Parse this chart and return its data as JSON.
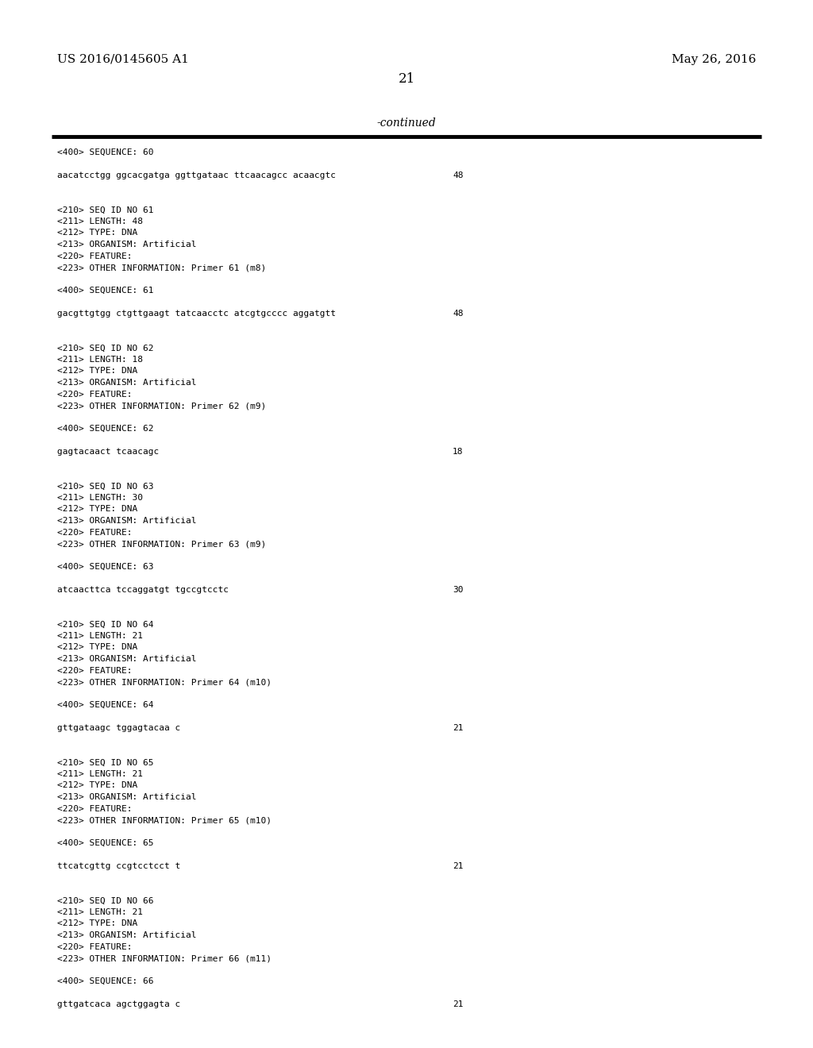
{
  "background_color": "#ffffff",
  "header_left": "US 2016/0145605 A1",
  "header_right": "May 26, 2016",
  "page_number": "21",
  "continued_label": "-continued",
  "content_lines": [
    {
      "text": "<400> SEQUENCE: 60",
      "seq_num": null
    },
    {
      "text": "",
      "seq_num": null
    },
    {
      "text": "aacatcctgg ggcacgatga ggttgataac ttcaacagcc acaacgtc",
      "seq_num": "48"
    },
    {
      "text": "",
      "seq_num": null
    },
    {
      "text": "",
      "seq_num": null
    },
    {
      "text": "<210> SEQ ID NO 61",
      "seq_num": null
    },
    {
      "text": "<211> LENGTH: 48",
      "seq_num": null
    },
    {
      "text": "<212> TYPE: DNA",
      "seq_num": null
    },
    {
      "text": "<213> ORGANISM: Artificial",
      "seq_num": null
    },
    {
      "text": "<220> FEATURE:",
      "seq_num": null
    },
    {
      "text": "<223> OTHER INFORMATION: Primer 61 (m8)",
      "seq_num": null
    },
    {
      "text": "",
      "seq_num": null
    },
    {
      "text": "<400> SEQUENCE: 61",
      "seq_num": null
    },
    {
      "text": "",
      "seq_num": null
    },
    {
      "text": "gacgttgtgg ctgttgaagt tatcaacctc atcgtgcccc aggatgtt",
      "seq_num": "48"
    },
    {
      "text": "",
      "seq_num": null
    },
    {
      "text": "",
      "seq_num": null
    },
    {
      "text": "<210> SEQ ID NO 62",
      "seq_num": null
    },
    {
      "text": "<211> LENGTH: 18",
      "seq_num": null
    },
    {
      "text": "<212> TYPE: DNA",
      "seq_num": null
    },
    {
      "text": "<213> ORGANISM: Artificial",
      "seq_num": null
    },
    {
      "text": "<220> FEATURE:",
      "seq_num": null
    },
    {
      "text": "<223> OTHER INFORMATION: Primer 62 (m9)",
      "seq_num": null
    },
    {
      "text": "",
      "seq_num": null
    },
    {
      "text": "<400> SEQUENCE: 62",
      "seq_num": null
    },
    {
      "text": "",
      "seq_num": null
    },
    {
      "text": "gagtacaact tcaacagc",
      "seq_num": "18"
    },
    {
      "text": "",
      "seq_num": null
    },
    {
      "text": "",
      "seq_num": null
    },
    {
      "text": "<210> SEQ ID NO 63",
      "seq_num": null
    },
    {
      "text": "<211> LENGTH: 30",
      "seq_num": null
    },
    {
      "text": "<212> TYPE: DNA",
      "seq_num": null
    },
    {
      "text": "<213> ORGANISM: Artificial",
      "seq_num": null
    },
    {
      "text": "<220> FEATURE:",
      "seq_num": null
    },
    {
      "text": "<223> OTHER INFORMATION: Primer 63 (m9)",
      "seq_num": null
    },
    {
      "text": "",
      "seq_num": null
    },
    {
      "text": "<400> SEQUENCE: 63",
      "seq_num": null
    },
    {
      "text": "",
      "seq_num": null
    },
    {
      "text": "atcaacttca tccaggatgt tgccgtcctc",
      "seq_num": "30"
    },
    {
      "text": "",
      "seq_num": null
    },
    {
      "text": "",
      "seq_num": null
    },
    {
      "text": "<210> SEQ ID NO 64",
      "seq_num": null
    },
    {
      "text": "<211> LENGTH: 21",
      "seq_num": null
    },
    {
      "text": "<212> TYPE: DNA",
      "seq_num": null
    },
    {
      "text": "<213> ORGANISM: Artificial",
      "seq_num": null
    },
    {
      "text": "<220> FEATURE:",
      "seq_num": null
    },
    {
      "text": "<223> OTHER INFORMATION: Primer 64 (m10)",
      "seq_num": null
    },
    {
      "text": "",
      "seq_num": null
    },
    {
      "text": "<400> SEQUENCE: 64",
      "seq_num": null
    },
    {
      "text": "",
      "seq_num": null
    },
    {
      "text": "gttgataagc tggagtacaa c",
      "seq_num": "21"
    },
    {
      "text": "",
      "seq_num": null
    },
    {
      "text": "",
      "seq_num": null
    },
    {
      "text": "<210> SEQ ID NO 65",
      "seq_num": null
    },
    {
      "text": "<211> LENGTH: 21",
      "seq_num": null
    },
    {
      "text": "<212> TYPE: DNA",
      "seq_num": null
    },
    {
      "text": "<213> ORGANISM: Artificial",
      "seq_num": null
    },
    {
      "text": "<220> FEATURE:",
      "seq_num": null
    },
    {
      "text": "<223> OTHER INFORMATION: Primer 65 (m10)",
      "seq_num": null
    },
    {
      "text": "",
      "seq_num": null
    },
    {
      "text": "<400> SEQUENCE: 65",
      "seq_num": null
    },
    {
      "text": "",
      "seq_num": null
    },
    {
      "text": "ttcatcgttg ccgtcctcct t",
      "seq_num": "21"
    },
    {
      "text": "",
      "seq_num": null
    },
    {
      "text": "",
      "seq_num": null
    },
    {
      "text": "<210> SEQ ID NO 66",
      "seq_num": null
    },
    {
      "text": "<211> LENGTH: 21",
      "seq_num": null
    },
    {
      "text": "<212> TYPE: DNA",
      "seq_num": null
    },
    {
      "text": "<213> ORGANISM: Artificial",
      "seq_num": null
    },
    {
      "text": "<220> FEATURE:",
      "seq_num": null
    },
    {
      "text": "<223> OTHER INFORMATION: Primer 66 (m11)",
      "seq_num": null
    },
    {
      "text": "",
      "seq_num": null
    },
    {
      "text": "<400> SEQUENCE: 66",
      "seq_num": null
    },
    {
      "text": "",
      "seq_num": null
    },
    {
      "text": "gttgatcaca agctggagta c",
      "seq_num": "21"
    }
  ]
}
